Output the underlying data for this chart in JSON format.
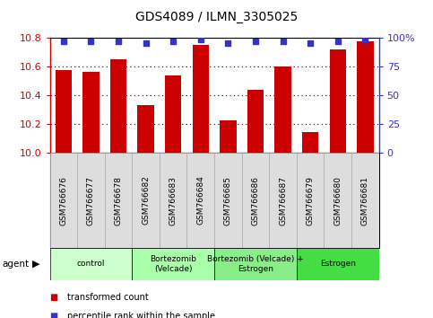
{
  "title": "GDS4089 / ILMN_3305025",
  "samples": [
    "GSM766676",
    "GSM766677",
    "GSM766678",
    "GSM766682",
    "GSM766683",
    "GSM766684",
    "GSM766685",
    "GSM766686",
    "GSM766687",
    "GSM766679",
    "GSM766680",
    "GSM766681"
  ],
  "bar_values": [
    10.575,
    10.565,
    10.655,
    10.33,
    10.54,
    10.755,
    10.225,
    10.44,
    10.6,
    10.145,
    10.72,
    10.775
  ],
  "percentile_values": [
    97,
    97,
    97,
    96,
    97,
    99,
    96,
    97,
    97,
    96,
    97,
    99
  ],
  "bar_color": "#cc0000",
  "dot_color": "#3333cc",
  "ylim_left": [
    10.0,
    10.8
  ],
  "ylim_right": [
    0,
    100
  ],
  "yticks_left": [
    10.0,
    10.2,
    10.4,
    10.6,
    10.8
  ],
  "yticks_right": [
    0,
    25,
    50,
    75,
    100
  ],
  "groups": [
    {
      "label": "control",
      "start": 0,
      "end": 3,
      "color": "#ccffcc"
    },
    {
      "label": "Bortezomib\n(Velcade)",
      "start": 3,
      "end": 6,
      "color": "#aaffaa"
    },
    {
      "label": "Bortezomib (Velcade) +\nEstrogen",
      "start": 6,
      "end": 9,
      "color": "#88ee88"
    },
    {
      "label": "Estrogen",
      "start": 9,
      "end": 12,
      "color": "#44dd44"
    }
  ],
  "legend_items": [
    {
      "color": "#cc0000",
      "label": "transformed count"
    },
    {
      "color": "#3333cc",
      "label": "percentile rank within the sample"
    }
  ],
  "agent_label": "agent",
  "background_color": "#ffffff",
  "tick_label_color_left": "#cc0000",
  "tick_label_color_right": "#3333cc",
  "sample_box_color": "#dddddd",
  "sample_box_edge": "#aaaaaa"
}
